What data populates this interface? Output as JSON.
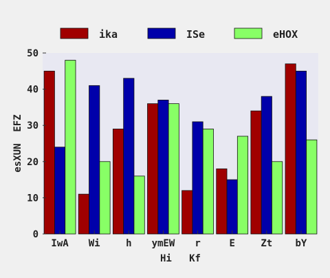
{
  "chart_data": {
    "type": "bar",
    "title": "",
    "xlabel": "Hi   Kf",
    "ylabel": "esXUN  EFZ",
    "categories": [
      "IwA",
      "Wi",
      "h",
      "ymEW",
      "r",
      "E",
      "Zt",
      "bY"
    ],
    "ylim": [
      0,
      50
    ],
    "yticks": [
      0,
      10,
      20,
      30,
      40,
      50
    ],
    "grid": false,
    "legend_position": "top",
    "series": [
      {
        "name": "ika",
        "color": "#a00000",
        "values": [
          45,
          11,
          29,
          36,
          12,
          18,
          34,
          47
        ]
      },
      {
        "name": "ISe",
        "color": "#0000aa",
        "values": [
          24,
          41,
          43,
          37,
          31,
          15,
          38,
          45
        ]
      },
      {
        "name": "eHOX",
        "color": "#88ff66",
        "values": [
          48,
          20,
          16,
          36,
          29,
          27,
          20,
          26
        ]
      }
    ],
    "plot_background": "#e8e8f2",
    "page_background": "#f0f0f0"
  }
}
